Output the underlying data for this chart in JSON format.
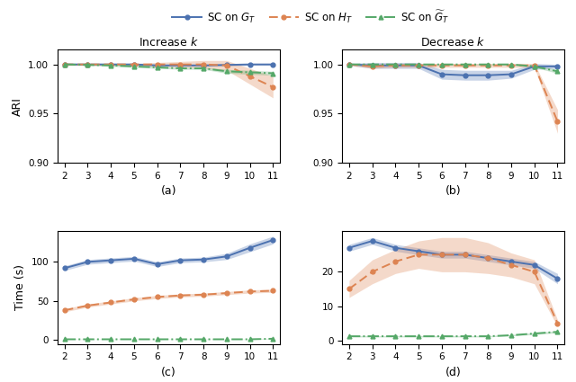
{
  "x": [
    2,
    3,
    4,
    5,
    6,
    7,
    8,
    9,
    10,
    11
  ],
  "ax_a": {
    "blue_mean": [
      1.0,
      1.0,
      1.0,
      1.0,
      0.999,
      0.999,
      0.999,
      0.9995,
      1.0,
      1.0
    ],
    "blue_std": [
      0.0005,
      0.0005,
      0.0005,
      0.0005,
      0.0008,
      0.001,
      0.001,
      0.001,
      0.001,
      0.001
    ],
    "orange_mean": [
      1.0,
      1.0,
      1.0,
      1.0,
      1.0,
      1.0,
      1.0,
      0.999,
      0.988,
      0.977
    ],
    "orange_std": [
      0.001,
      0.001,
      0.001,
      0.001,
      0.002,
      0.003,
      0.004,
      0.005,
      0.008,
      0.011
    ],
    "green_mean": [
      1.0,
      0.9995,
      0.999,
      0.998,
      0.997,
      0.996,
      0.996,
      0.993,
      0.992,
      0.991
    ],
    "green_std": [
      0.0005,
      0.0005,
      0.001,
      0.001,
      0.001,
      0.001,
      0.001,
      0.002,
      0.002,
      0.002
    ],
    "ylim": [
      0.9,
      1.015
    ],
    "yticks": [
      0.9,
      0.95,
      1.0
    ],
    "title": "Increase $k$",
    "label": "(a)"
  },
  "ax_b": {
    "blue_mean": [
      1.0,
      0.999,
      0.999,
      0.999,
      0.99,
      0.989,
      0.989,
      0.99,
      0.998,
      0.998
    ],
    "blue_std": [
      0.001,
      0.003,
      0.003,
      0.003,
      0.005,
      0.005,
      0.005,
      0.004,
      0.003,
      0.002
    ],
    "orange_mean": [
      1.0,
      0.998,
      0.999,
      0.999,
      0.999,
      0.999,
      0.999,
      0.999,
      0.999,
      0.942
    ],
    "orange_std": [
      0.001,
      0.002,
      0.002,
      0.002,
      0.002,
      0.002,
      0.002,
      0.002,
      0.002,
      0.012
    ],
    "green_mean": [
      1.0,
      1.0,
      1.0,
      1.0,
      1.0,
      1.0,
      1.0,
      1.0,
      0.998,
      0.993
    ],
    "green_std": [
      0.0005,
      0.0005,
      0.0005,
      0.0005,
      0.0005,
      0.0005,
      0.0005,
      0.0005,
      0.001,
      0.002
    ],
    "ylim": [
      0.9,
      1.015
    ],
    "yticks": [
      0.9,
      0.95,
      1.0
    ],
    "title": "Decrease $k$",
    "label": "(b)"
  },
  "ax_c": {
    "blue_mean": [
      92,
      100,
      102,
      104,
      97,
      102,
      103,
      107,
      118,
      128
    ],
    "blue_std": [
      3,
      3,
      3,
      3,
      3,
      3,
      3,
      4,
      5,
      5
    ],
    "orange_mean": [
      38,
      44,
      48,
      52,
      55,
      57,
      58,
      60,
      62,
      63
    ],
    "orange_std": [
      2,
      2,
      2,
      2,
      2,
      2,
      2,
      2,
      2,
      2
    ],
    "green_mean": [
      0.8,
      0.8,
      0.8,
      0.8,
      0.8,
      0.8,
      0.8,
      0.8,
      0.8,
      1.5
    ],
    "green_std": [
      0.2,
      0.2,
      0.2,
      0.2,
      0.2,
      0.2,
      0.2,
      0.2,
      0.2,
      0.3
    ],
    "ylim": [
      -5,
      140
    ],
    "yticks": [
      0,
      50,
      100
    ],
    "label": "(c)"
  },
  "ax_d": {
    "blue_mean": [
      27,
      29,
      27,
      26,
      25,
      25,
      24,
      23,
      22,
      18
    ],
    "blue_std": [
      1.0,
      1.0,
      1.0,
      1.0,
      1.0,
      1.0,
      1.0,
      1.0,
      1.0,
      1.5
    ],
    "orange_mean": [
      15,
      20,
      23,
      25,
      25,
      25,
      24,
      22,
      20,
      5
    ],
    "orange_std": [
      2.5,
      3.5,
      3.5,
      4.0,
      5.0,
      5.0,
      4.5,
      3.5,
      3.5,
      1.0
    ],
    "green_mean": [
      1.2,
      1.2,
      1.2,
      1.2,
      1.2,
      1.2,
      1.2,
      1.5,
      2.0,
      2.5
    ],
    "green_std": [
      0.2,
      0.2,
      0.2,
      0.2,
      0.2,
      0.2,
      0.2,
      0.2,
      0.3,
      0.3
    ],
    "ylim": [
      -1,
      32
    ],
    "yticks": [
      0,
      10,
      20
    ],
    "label": "(d)"
  },
  "blue_color": "#4c72b0",
  "orange_color": "#dd8452",
  "green_color": "#55a868",
  "blue_alpha": 0.3,
  "orange_alpha": 0.3,
  "green_alpha": 0.3,
  "legend_labels": [
    "SC on $G_T$",
    "SC on $H_T$",
    "SC on $\\widetilde{G}_T$"
  ],
  "ylabel_ari": "ARI",
  "ylabel_time": "Time (s)"
}
